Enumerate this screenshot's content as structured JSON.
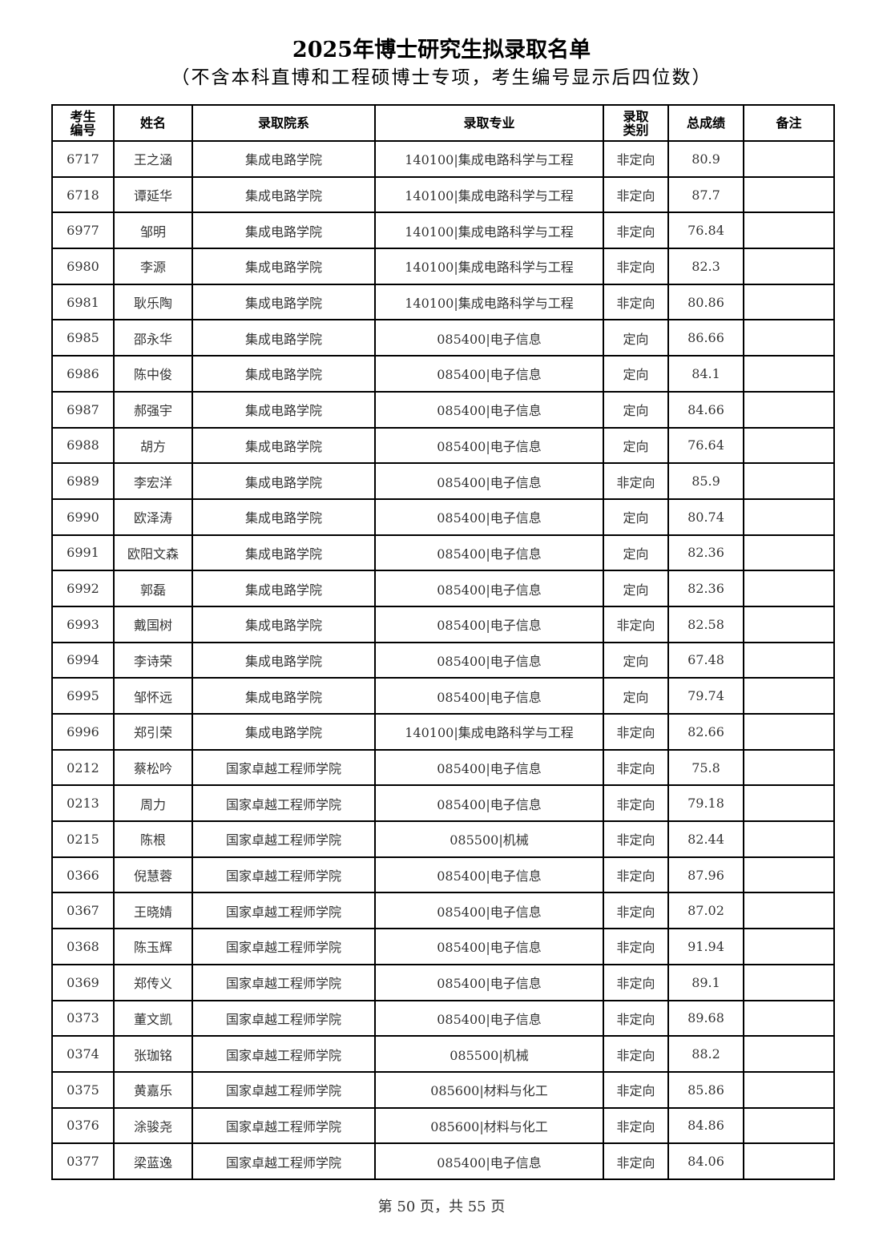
{
  "title": "2025年博士研究生拟录取名单",
  "subtitle": "（不含本科直博和工程硕博士专项，考生编号显示后四位数）",
  "columns": [
    "考生编号",
    "姓名",
    "录取院系",
    "录取专业",
    "录取类别",
    "总成绩",
    "备注"
  ],
  "rows": [
    [
      "6717",
      "王之涵",
      "集成电路学院",
      "140100|集成电路科学与工程",
      "非定向",
      "80.9",
      ""
    ],
    [
      "6718",
      "谭延华",
      "集成电路学院",
      "140100|集成电路科学与工程",
      "非定向",
      "87.7",
      ""
    ],
    [
      "6977",
      "邹明",
      "集成电路学院",
      "140100|集成电路科学与工程",
      "非定向",
      "76.84",
      ""
    ],
    [
      "6980",
      "李源",
      "集成电路学院",
      "140100|集成电路科学与工程",
      "非定向",
      "82.3",
      ""
    ],
    [
      "6981",
      "耿乐陶",
      "集成电路学院",
      "140100|集成电路科学与工程",
      "非定向",
      "80.86",
      ""
    ],
    [
      "6985",
      "邵永华",
      "集成电路学院",
      "085400|电子信息",
      "定向",
      "86.66",
      ""
    ],
    [
      "6986",
      "陈中俊",
      "集成电路学院",
      "085400|电子信息",
      "定向",
      "84.1",
      ""
    ],
    [
      "6987",
      "郝强宇",
      "集成电路学院",
      "085400|电子信息",
      "定向",
      "84.66",
      ""
    ],
    [
      "6988",
      "胡方",
      "集成电路学院",
      "085400|电子信息",
      "定向",
      "76.64",
      ""
    ],
    [
      "6989",
      "李宏洋",
      "集成电路学院",
      "085400|电子信息",
      "非定向",
      "85.9",
      ""
    ],
    [
      "6990",
      "欧泽涛",
      "集成电路学院",
      "085400|电子信息",
      "定向",
      "80.74",
      ""
    ],
    [
      "6991",
      "欧阳文森",
      "集成电路学院",
      "085400|电子信息",
      "定向",
      "82.36",
      ""
    ],
    [
      "6992",
      "郭磊",
      "集成电路学院",
      "085400|电子信息",
      "定向",
      "82.36",
      ""
    ],
    [
      "6993",
      "戴国树",
      "集成电路学院",
      "085400|电子信息",
      "非定向",
      "82.58",
      ""
    ],
    [
      "6994",
      "李诗荣",
      "集成电路学院",
      "085400|电子信息",
      "定向",
      "67.48",
      ""
    ],
    [
      "6995",
      "邹怀远",
      "集成电路学院",
      "085400|电子信息",
      "定向",
      "79.74",
      ""
    ],
    [
      "6996",
      "郑引荣",
      "集成电路学院",
      "140100|集成电路科学与工程",
      "非定向",
      "82.66",
      ""
    ],
    [
      "0212",
      "蔡松吟",
      "国家卓越工程师学院",
      "085400|电子信息",
      "非定向",
      "75.8",
      ""
    ],
    [
      "0213",
      "周力",
      "国家卓越工程师学院",
      "085400|电子信息",
      "非定向",
      "79.18",
      ""
    ],
    [
      "0215",
      "陈根",
      "国家卓越工程师学院",
      "085500|机械",
      "非定向",
      "82.44",
      ""
    ],
    [
      "0366",
      "倪慧蓉",
      "国家卓越工程师学院",
      "085400|电子信息",
      "非定向",
      "87.96",
      ""
    ],
    [
      "0367",
      "王晓婧",
      "国家卓越工程师学院",
      "085400|电子信息",
      "非定向",
      "87.02",
      ""
    ],
    [
      "0368",
      "陈玉辉",
      "国家卓越工程师学院",
      "085400|电子信息",
      "非定向",
      "91.94",
      ""
    ],
    [
      "0369",
      "郑传义",
      "国家卓越工程师学院",
      "085400|电子信息",
      "非定向",
      "89.1",
      ""
    ],
    [
      "0373",
      "董文凯",
      "国家卓越工程师学院",
      "085400|电子信息",
      "非定向",
      "89.68",
      ""
    ],
    [
      "0374",
      "张珈铭",
      "国家卓越工程师学院",
      "085500|机械",
      "非定向",
      "88.2",
      ""
    ],
    [
      "0375",
      "黄嘉乐",
      "国家卓越工程师学院",
      "085600|材料与化工",
      "非定向",
      "85.86",
      ""
    ],
    [
      "0376",
      "涂骏尧",
      "国家卓越工程师学院",
      "085600|材料与化工",
      "非定向",
      "84.86",
      ""
    ],
    [
      "0377",
      "梁蓝逸",
      "国家卓越工程师学院",
      "085400|电子信息",
      "非定向",
      "84.06",
      ""
    ]
  ],
  "footer": "第 50 页，共 55 页"
}
